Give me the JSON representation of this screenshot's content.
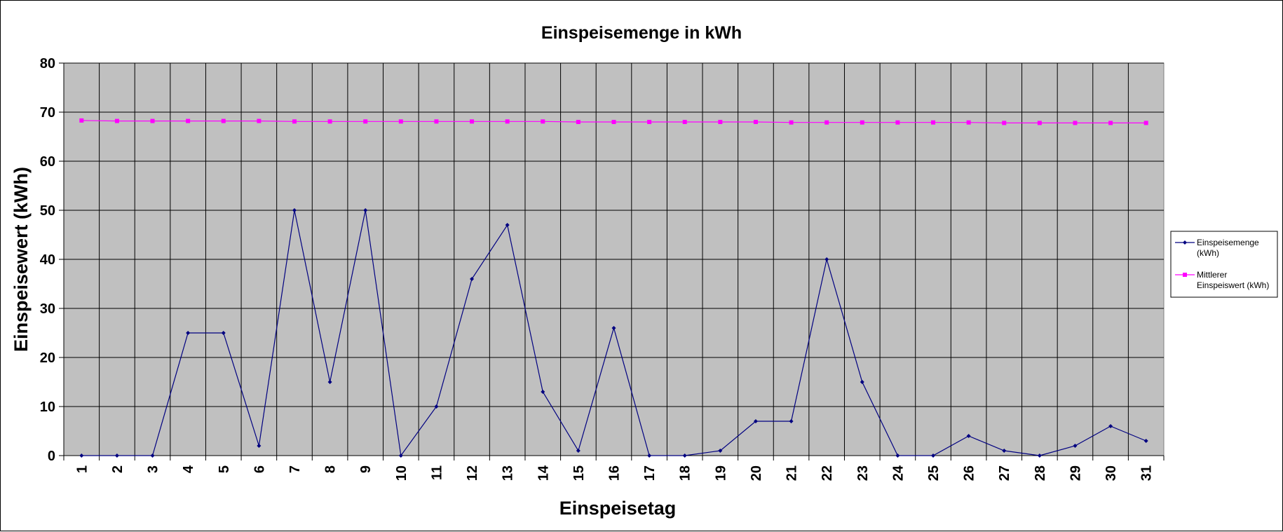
{
  "chart_data": {
    "type": "line",
    "title": "Einspeisemenge in kWh",
    "xlabel": "Einspeisetag",
    "ylabel": "Einspeisewert  (kWh)",
    "ylim": [
      0,
      80
    ],
    "yticks": [
      0,
      10,
      20,
      30,
      40,
      50,
      60,
      70,
      80
    ],
    "grid": true,
    "legend_position": "right",
    "categories": [
      "1",
      "2",
      "3",
      "4",
      "5",
      "6",
      "7",
      "8",
      "9",
      "10",
      "11",
      "12",
      "13",
      "14",
      "15",
      "16",
      "17",
      "18",
      "19",
      "20",
      "21",
      "22",
      "23",
      "24",
      "25",
      "26",
      "27",
      "28",
      "29",
      "30",
      "31"
    ],
    "series": [
      {
        "name_lines": [
          "Einspeisemenge",
          "(kWh)"
        ],
        "color": "#000080",
        "marker": "diamond",
        "values": [
          0,
          0,
          0,
          25,
          25,
          2,
          50,
          15,
          50,
          0,
          10,
          36,
          47,
          13,
          1,
          26,
          0,
          0,
          1,
          7,
          7,
          40,
          15,
          0,
          0,
          4,
          1,
          0,
          2,
          6,
          3
        ]
      },
      {
        "name_lines": [
          "Mittlerer",
          "Einspeiswert (kWh)"
        ],
        "color": "#ff00ff",
        "marker": "square",
        "values": [
          68.3,
          68.2,
          68.2,
          68.2,
          68.2,
          68.2,
          68.1,
          68.1,
          68.1,
          68.1,
          68.1,
          68.1,
          68.1,
          68.1,
          68.0,
          68.0,
          68.0,
          68.0,
          68.0,
          68.0,
          67.9,
          67.9,
          67.9,
          67.9,
          67.9,
          67.9,
          67.8,
          67.8,
          67.8,
          67.8,
          67.8
        ]
      }
    ],
    "plot_background": "#c0c0c0"
  }
}
